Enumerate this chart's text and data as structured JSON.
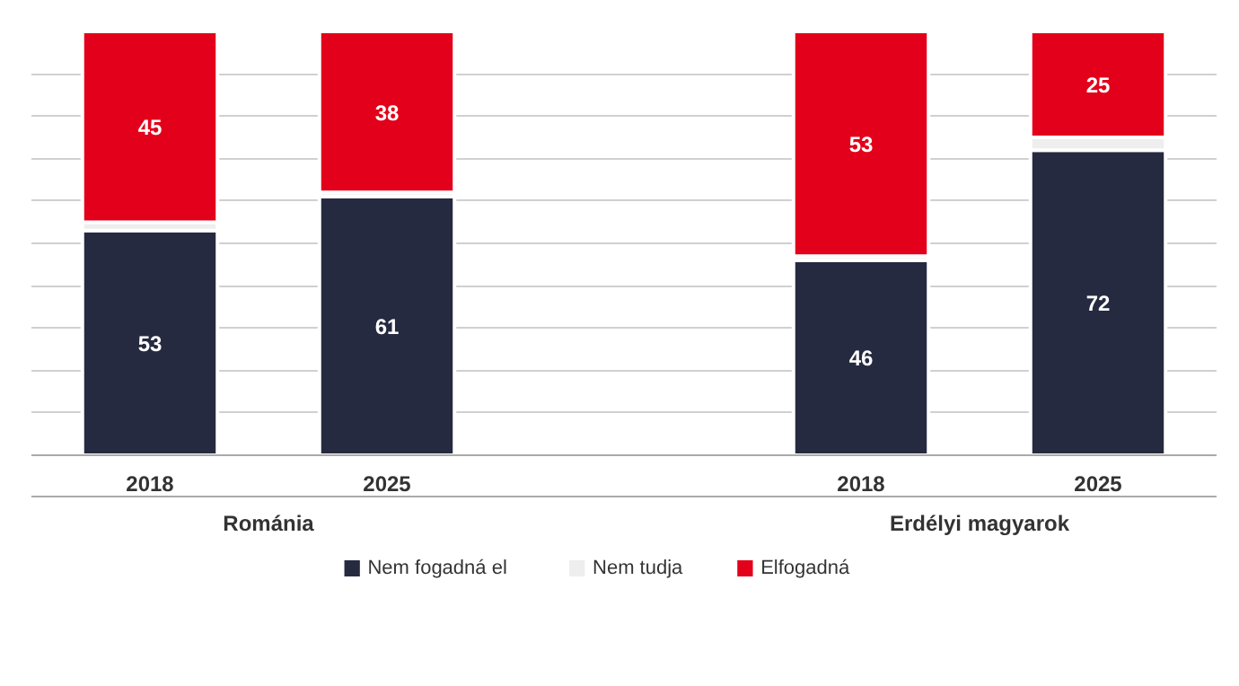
{
  "chart_data": {
    "type": "bar",
    "stacked": true,
    "categories": [
      "2018",
      "2025",
      null,
      "2018",
      "2025"
    ],
    "series": [
      {
        "name": "Nem fogadná el",
        "color": "#262a40",
        "values": [
          53,
          61,
          null,
          46,
          72
        ],
        "value_labels": [
          "53",
          "61",
          null,
          "46",
          "72"
        ]
      },
      {
        "name": "Nem tudja",
        "color": "#eeeeee",
        "values": [
          2,
          1,
          null,
          1,
          3
        ],
        "value_labels": [
          null,
          null,
          null,
          null,
          null
        ]
      },
      {
        "name": "Elfogadná",
        "color": "#e2001a",
        "values": [
          45,
          38,
          null,
          53,
          25
        ],
        "value_labels": [
          "45",
          "38",
          null,
          "53",
          "25"
        ]
      }
    ],
    "annotations": [
      "Románia",
      "Erdélyi magyarok"
    ],
    "ylim": [
      0,
      100
    ],
    "yticks": [
      {
        "value": 0,
        "label": null
      },
      {
        "value": 10,
        "label": null
      },
      {
        "value": 20,
        "label": null
      },
      {
        "value": 30,
        "label": null
      },
      {
        "value": 40,
        "label": null
      },
      {
        "value": 50,
        "label": null
      },
      {
        "value": 60,
        "label": null
      },
      {
        "value": 70,
        "label": null
      },
      {
        "value": 80,
        "label": null
      },
      {
        "value": 90,
        "label": null
      }
    ],
    "tick_labels": "x",
    "grid": "y",
    "legend": "bottom"
  }
}
